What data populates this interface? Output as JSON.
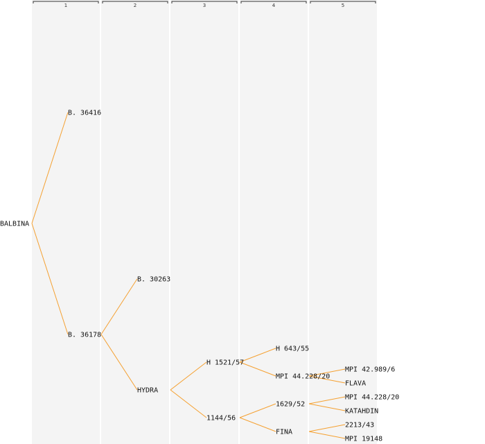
{
  "generations": [
    "1",
    "2",
    "3",
    "4",
    "5"
  ],
  "colors": {
    "edge": "#f5a030",
    "text": "#111111",
    "band": "#f4f4f4"
  },
  "nodes": [
    {
      "id": "balbina",
      "label": "BALBINA",
      "gen": 0,
      "row": 0
    },
    {
      "id": "b36416",
      "label": "B. 36416",
      "gen": 1,
      "row": 1
    },
    {
      "id": "b36178",
      "label": "B. 36178",
      "gen": 1,
      "row": 2
    },
    {
      "id": "b30263",
      "label": "B. 30263",
      "gen": 2,
      "row": 3
    },
    {
      "id": "hydra",
      "label": "HYDRA",
      "gen": 2,
      "row": 4
    },
    {
      "id": "h1521",
      "label": "H 1521/57",
      "gen": 3,
      "row": 5
    },
    {
      "id": "n1144",
      "label": "1144/56",
      "gen": 3,
      "row": 6
    },
    {
      "id": "h643",
      "label": "H 643/55",
      "gen": 4,
      "row": 7
    },
    {
      "id": "mpi44a",
      "label": "MPI 44.228/20",
      "gen": 4,
      "row": 8
    },
    {
      "id": "n1629",
      "label": "1629/52",
      "gen": 4,
      "row": 9
    },
    {
      "id": "fina",
      "label": "FINA",
      "gen": 4,
      "row": 10
    },
    {
      "id": "mpi42",
      "label": "MPI 42.989/6",
      "gen": 5,
      "row": 11
    },
    {
      "id": "flava",
      "label": "FLAVA",
      "gen": 5,
      "row": 12
    },
    {
      "id": "mpi44b",
      "label": "MPI 44.228/20",
      "gen": 5,
      "row": 13
    },
    {
      "id": "katahdin",
      "label": "KATAHDIN",
      "gen": 5,
      "row": 14
    },
    {
      "id": "n2213",
      "label": "2213/43",
      "gen": 5,
      "row": 15
    },
    {
      "id": "mpi19148",
      "label": "MPI 19148",
      "gen": 5,
      "row": 16
    }
  ],
  "edges": [
    [
      "balbina",
      "b36416"
    ],
    [
      "balbina",
      "b36178"
    ],
    [
      "b36178",
      "b30263"
    ],
    [
      "b36178",
      "hydra"
    ],
    [
      "hydra",
      "h1521"
    ],
    [
      "hydra",
      "n1144"
    ],
    [
      "h1521",
      "h643"
    ],
    [
      "h1521",
      "mpi44a"
    ],
    [
      "n1144",
      "n1629"
    ],
    [
      "n1144",
      "fina"
    ],
    [
      "mpi44a",
      "mpi42"
    ],
    [
      "mpi44a",
      "flava"
    ],
    [
      "n1629",
      "mpi44b"
    ],
    [
      "n1629",
      "katahdin"
    ],
    [
      "fina",
      "n2213"
    ],
    [
      "fina",
      "mpi19148"
    ]
  ]
}
